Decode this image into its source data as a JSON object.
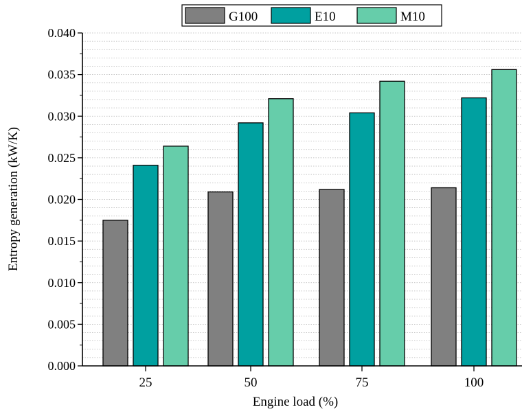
{
  "chart_data": {
    "type": "bar",
    "title": "",
    "xlabel": "Engine load (%)",
    "ylabel": "Entropy generation (kW/K)",
    "categories": [
      "25",
      "50",
      "75",
      "100"
    ],
    "ylim": [
      0,
      0.04
    ],
    "yticks": [
      "0.000",
      "0.005",
      "0.010",
      "0.015",
      "0.020",
      "0.025",
      "0.030",
      "0.035",
      "0.040"
    ],
    "grid": true,
    "legend_position": "top-center",
    "series": [
      {
        "name": "G100",
        "color": "#808080",
        "values": [
          0.0175,
          0.0209,
          0.0212,
          0.0214
        ]
      },
      {
        "name": "E10",
        "color": "#00A0A0",
        "values": [
          0.0241,
          0.0292,
          0.0304,
          0.0322
        ]
      },
      {
        "name": "M10",
        "color": "#66CDAA",
        "values": [
          0.0264,
          0.0321,
          0.0342,
          0.0356
        ]
      }
    ]
  }
}
